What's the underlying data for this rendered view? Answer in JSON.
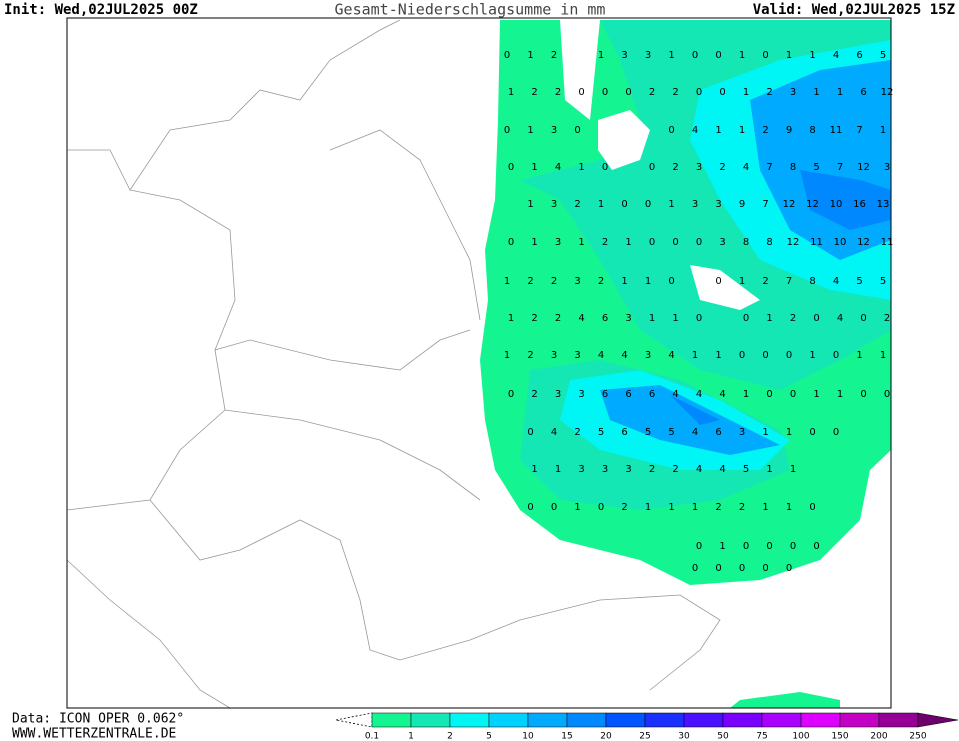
{
  "header": {
    "init": "Init: Wed,02JUL2025 00Z",
    "title": "Gesamt-Niederschlagsumme in mm",
    "valid": "Valid: Wed,02JUL2025 15Z"
  },
  "footer": {
    "data_source": "Data: ICON OPER 0.062°",
    "website": "WWW.WETTERZENTRALE.DE"
  },
  "precip_grid": [
    [
      0,
      1,
      2,
      null,
      1,
      3,
      3,
      1,
      0,
      0,
      1,
      0,
      1,
      1,
      4,
      6,
      5
    ],
    [
      1,
      2,
      2,
      0,
      0,
      0,
      2,
      2,
      0,
      0,
      1,
      2,
      3,
      1,
      1,
      6,
      12
    ],
    [
      0,
      1,
      3,
      0,
      null,
      null,
      null,
      0,
      4,
      1,
      1,
      2,
      9,
      8,
      11,
      7,
      1
    ],
    [
      0,
      1,
      4,
      1,
      0,
      null,
      0,
      2,
      3,
      2,
      4,
      7,
      8,
      5,
      7,
      12,
      3
    ],
    [
      null,
      1,
      3,
      2,
      1,
      0,
      0,
      1,
      3,
      3,
      9,
      7,
      12,
      12,
      10,
      16,
      13
    ],
    [
      0,
      1,
      3,
      1,
      2,
      1,
      0,
      0,
      0,
      3,
      8,
      8,
      12,
      11,
      10,
      12,
      11
    ],
    [
      1,
      2,
      2,
      3,
      2,
      1,
      1,
      0,
      null,
      0,
      1,
      2,
      7,
      8,
      4,
      5,
      5
    ],
    [
      1,
      2,
      2,
      4,
      6,
      3,
      1,
      1,
      0,
      null,
      0,
      1,
      2,
      0,
      4,
      0,
      2
    ],
    [
      1,
      2,
      3,
      3,
      4,
      4,
      3,
      4,
      1,
      1,
      0,
      0,
      0,
      1,
      0,
      1,
      1
    ],
    [
      0,
      2,
      3,
      3,
      6,
      6,
      6,
      4,
      4,
      4,
      1,
      0,
      0,
      1,
      1,
      0,
      0
    ],
    [
      null,
      0,
      4,
      2,
      5,
      6,
      5,
      5,
      4,
      6,
      3,
      1,
      1,
      0,
      0,
      null,
      null
    ],
    [
      null,
      1,
      1,
      3,
      3,
      3,
      2,
      2,
      4,
      4,
      5,
      1,
      1,
      null,
      null,
      null,
      null
    ],
    [
      null,
      0,
      0,
      1,
      0,
      2,
      1,
      1,
      1,
      2,
      2,
      1,
      1,
      0,
      null,
      null,
      null
    ],
    [
      null,
      null,
      null,
      null,
      null,
      null,
      null,
      null,
      0,
      1,
      0,
      0,
      0,
      0,
      null,
      null,
      null
    ],
    [
      null,
      null,
      null,
      null,
      null,
      null,
      null,
      null,
      0,
      0,
      0,
      0,
      0,
      null,
      null,
      null,
      null
    ]
  ],
  "colorbar": {
    "levels": [
      0.1,
      1,
      2,
      5,
      10,
      15,
      20,
      25,
      30,
      50,
      75,
      100,
      150,
      200,
      250
    ],
    "colors": [
      "#14f592",
      "#14e6b4",
      "#00f5f5",
      "#00d2ff",
      "#00aaff",
      "#0088ff",
      "#0055ff",
      "#1a30ff",
      "#4a10ff",
      "#7a00ff",
      "#aa00ff",
      "#dd00ff",
      "#c400c4",
      "#960096",
      "#6e006e"
    ]
  }
}
